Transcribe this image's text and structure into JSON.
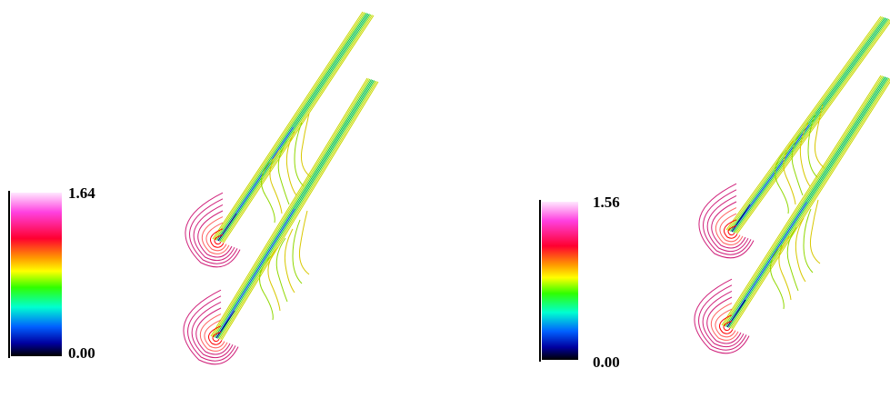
{
  "panels": [
    {
      "colorbar": {
        "max": "1.64",
        "min": "0.00"
      }
    },
    {
      "colorbar": {
        "max": "1.56",
        "min": "0.00"
      }
    }
  ]
}
